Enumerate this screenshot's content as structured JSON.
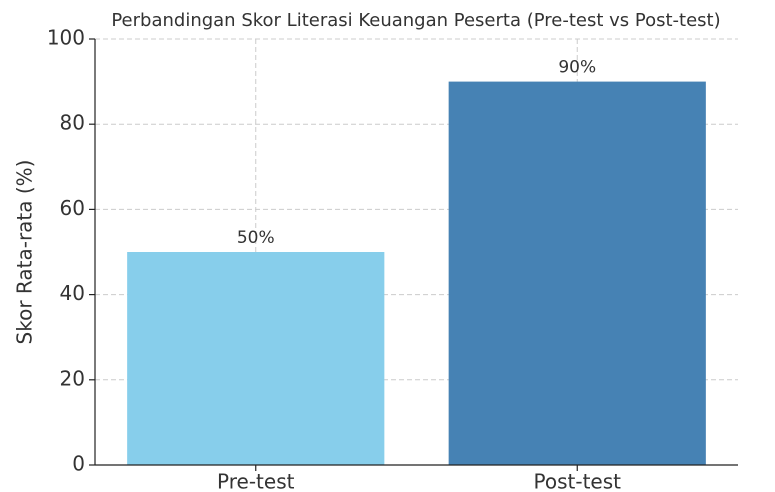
{
  "chart_data": {
    "type": "bar",
    "title": "Perbandingan Skor Literasi Keuangan Peserta (Pre-test vs Post-test)",
    "ylabel": "Skor Rata-rata (%)",
    "categories": [
      "Pre-test",
      "Post-test"
    ],
    "values": [
      50,
      90
    ],
    "value_labels": [
      "50%",
      "90%"
    ],
    "colors": [
      "#87ceeb",
      "#4682b4"
    ],
    "ylim": [
      0,
      100
    ],
    "yticks": [
      0,
      20,
      40,
      60,
      80,
      100
    ],
    "grid": true
  }
}
